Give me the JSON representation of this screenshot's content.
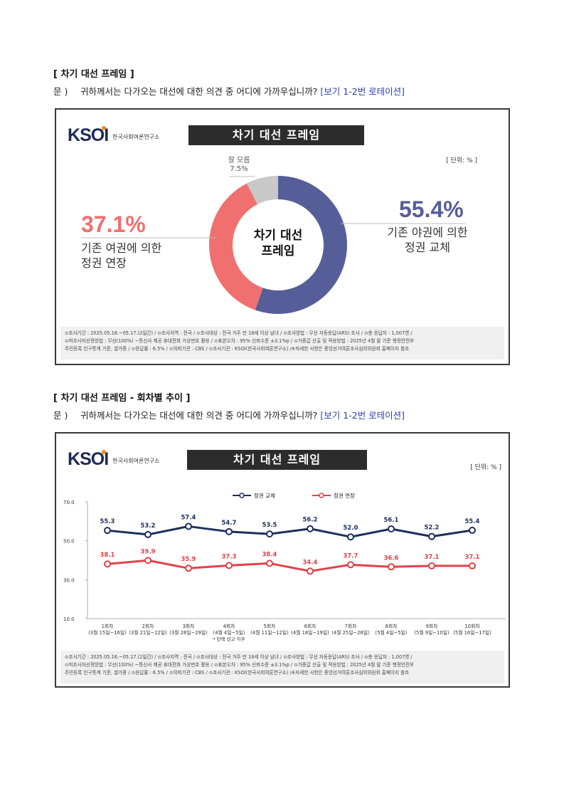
{
  "section1": {
    "title": "[ 차기 대선 프레임 ]",
    "question_prefix": "문 )",
    "question_text": "귀하께서는 다가오는 대선에 대한 의견 중 어디에 가까우십니까?",
    "question_rotation": "[보기 1-2번 로테이션]"
  },
  "section2": {
    "title": "[ 차기 대선 프레임 - 회차별 추이 ]",
    "question_prefix": "문 )",
    "question_text": "귀하께서는 다가오는 대선에 대한 의견 중 어디에 가까우십니까?",
    "question_rotation": "[보기 1-2번 로테이션]"
  },
  "logo": {
    "mark_k": "K",
    "mark_s": "S",
    "mark_o": "O",
    "mark_i": "I",
    "name": "한국사회여론연구소"
  },
  "footer_lines": [
    "⊙조사기간 : 2025.05.16.~05.17.(2일간) / ⊙조사지역 : 전국 / ⊙조사대상 : 전국 거주 만 18세 이상 남녀 / ⊙조사방법 : 무선 자동응답(ARS) 조사 / ⊙총 응답자 : 1,007명 /",
    "⊙피조사자선정방법 : 무선(100%) ~통신사 제공 휴대전화 가상번호 활용 / ⊙표본오차 : 95% 신뢰수준 ±3.1%p / ⊙가중값 산출 및 적용방법 : 2025년 4월 말 기준 행정안전부",
    "주민등록 인구통계 기준, 셀가중 / ⊙응답률 : 6.5% / ⊙의뢰기관 : CBS / ⊙조사기관 : KSOI(한국사회여론연구소) /※자세한 사항은 중앙선거여론조사심의위원회 홈페이지 참조"
  ],
  "colors": {
    "navy": "#565e99",
    "red": "#f07070",
    "gray": "#c8c8c8",
    "line_navy": "#1e2f5c",
    "line_red": "#e0434a"
  },
  "chart_data": [
    {
      "type": "pie",
      "title": "차기 대선 프레임",
      "unit": "[ 단위: % ]",
      "center_label": [
        "차기 대선",
        "프레임"
      ],
      "slices": [
        {
          "pct_text": "55.4%",
          "value": 55.4,
          "label": [
            "기존 야권에 의한",
            "정권 교체"
          ],
          "color": "#565e99"
        },
        {
          "pct_text": "37.1%",
          "value": 37.1,
          "label": [
            "기존 여권에 의한",
            "정권 연장"
          ],
          "color": "#f07070"
        },
        {
          "pct_text": "7.5%",
          "value": 7.5,
          "label": [
            "잘 모름"
          ],
          "color": "#c8c8c8"
        }
      ]
    },
    {
      "type": "line",
      "title": "차기 대선 프레임",
      "unit": "[ 단위: % ]",
      "ylim": [
        10,
        70
      ],
      "yticks": [
        "10.0",
        "30.0",
        "50.0",
        "70.0"
      ],
      "categories": [
        "1회차",
        "2회차",
        "3회차",
        "4회차",
        "5회차",
        "6회차",
        "7회차",
        "8회차",
        "9회차",
        "10회차"
      ],
      "category_dates": [
        "(3월 15일~16일)",
        "(3월 21일~22일)",
        "(3월 28일~29일)",
        "(4월 4일~5일)",
        "(4월 11일~12일)",
        "(4월 18일~19일)",
        "(4월 25일~26일)",
        "(5월 4일~5일)",
        "(5월 9일~10일)",
        "(5월 16일~17일)"
      ],
      "category_note": {
        "index": 3,
        "text": "* 탄핵 선고 이후"
      },
      "legend_position": "top-center",
      "series": [
        {
          "name": "정권 교체",
          "color": "#1e2f5c",
          "values": [
            55.3,
            53.2,
            57.4,
            54.7,
            53.5,
            56.2,
            52.0,
            56.1,
            52.2,
            55.4
          ],
          "labels": [
            "55.3",
            "53.2",
            "57.4",
            "54.7",
            "53.5",
            "56.2",
            "52.0",
            "56.1",
            "52.2",
            "55.4"
          ]
        },
        {
          "name": "정권 연장",
          "color": "#e0434a",
          "values": [
            38.1,
            39.9,
            35.9,
            37.3,
            38.4,
            34.4,
            37.7,
            36.6,
            37.1,
            37.1
          ],
          "labels": [
            "38.1",
            "39.9",
            "35.9",
            "37.3",
            "38.4",
            "34.4",
            "37.7",
            "36.6",
            "37.1",
            "37.1"
          ]
        }
      ]
    }
  ]
}
